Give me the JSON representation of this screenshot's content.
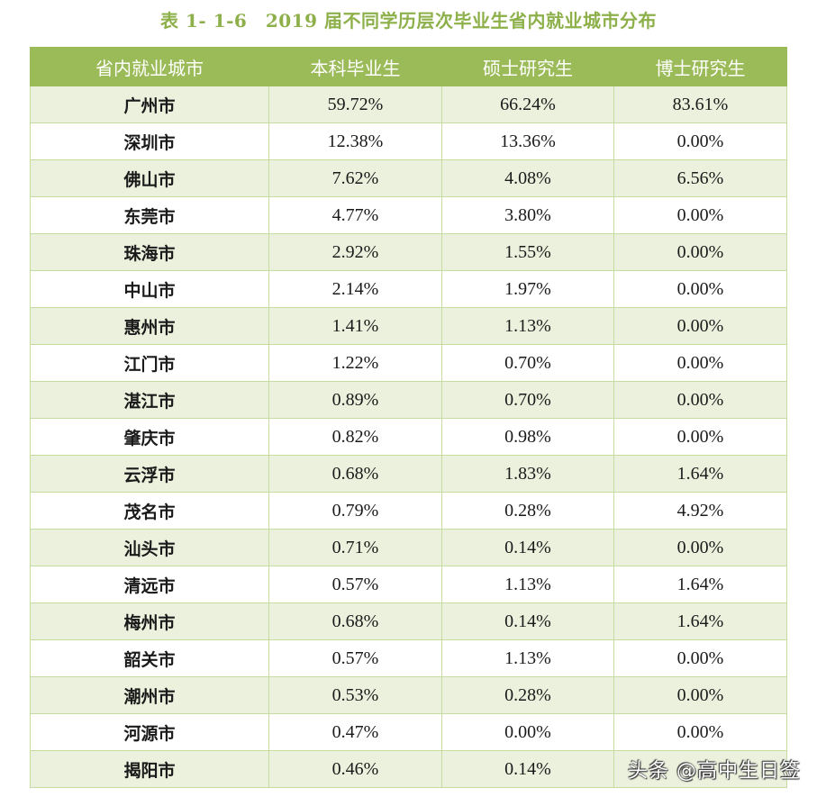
{
  "title": "表 1- 1-6　2019 届不同学历层次毕业生省内就业城市分布",
  "colors": {
    "title": "#8db04a",
    "header_bg": "#9bbb59",
    "row_alt_bg": "#ebf1dd",
    "border": "#c6dba0"
  },
  "table": {
    "headers": [
      "省内就业城市",
      "本科毕业生",
      "硕士研究生",
      "博士研究生"
    ],
    "rows": [
      {
        "city": "广州市",
        "bachelor": "59.72%",
        "master": "66.24%",
        "doctor": "83.61%"
      },
      {
        "city": "深圳市",
        "bachelor": "12.38%",
        "master": "13.36%",
        "doctor": "0.00%"
      },
      {
        "city": "佛山市",
        "bachelor": "7.62%",
        "master": "4.08%",
        "doctor": "6.56%"
      },
      {
        "city": "东莞市",
        "bachelor": "4.77%",
        "master": "3.80%",
        "doctor": "0.00%"
      },
      {
        "city": "珠海市",
        "bachelor": "2.92%",
        "master": "1.55%",
        "doctor": "0.00%"
      },
      {
        "city": "中山市",
        "bachelor": "2.14%",
        "master": "1.97%",
        "doctor": "0.00%"
      },
      {
        "city": "惠州市",
        "bachelor": "1.41%",
        "master": "1.13%",
        "doctor": "0.00%"
      },
      {
        "city": "江门市",
        "bachelor": "1.22%",
        "master": "0.70%",
        "doctor": "0.00%"
      },
      {
        "city": "湛江市",
        "bachelor": "0.89%",
        "master": "0.70%",
        "doctor": "0.00%"
      },
      {
        "city": "肇庆市",
        "bachelor": "0.82%",
        "master": "0.98%",
        "doctor": "0.00%"
      },
      {
        "city": "云浮市",
        "bachelor": "0.68%",
        "master": "1.83%",
        "doctor": "1.64%"
      },
      {
        "city": "茂名市",
        "bachelor": "0.79%",
        "master": "0.28%",
        "doctor": "4.92%"
      },
      {
        "city": "汕头市",
        "bachelor": "0.71%",
        "master": "0.14%",
        "doctor": "0.00%"
      },
      {
        "city": "清远市",
        "bachelor": "0.57%",
        "master": "1.13%",
        "doctor": "1.64%"
      },
      {
        "city": "梅州市",
        "bachelor": "0.68%",
        "master": "0.14%",
        "doctor": "1.64%"
      },
      {
        "city": "韶关市",
        "bachelor": "0.57%",
        "master": "1.13%",
        "doctor": "0.00%"
      },
      {
        "city": "潮州市",
        "bachelor": "0.53%",
        "master": "0.28%",
        "doctor": "0.00%"
      },
      {
        "city": "河源市",
        "bachelor": "0.47%",
        "master": "0.00%",
        "doctor": "0.00%"
      },
      {
        "city": "揭阳市",
        "bachelor": "0.46%",
        "master": "0.14%",
        "doctor": ""
      }
    ]
  },
  "watermark": "头条 @高中生日签"
}
